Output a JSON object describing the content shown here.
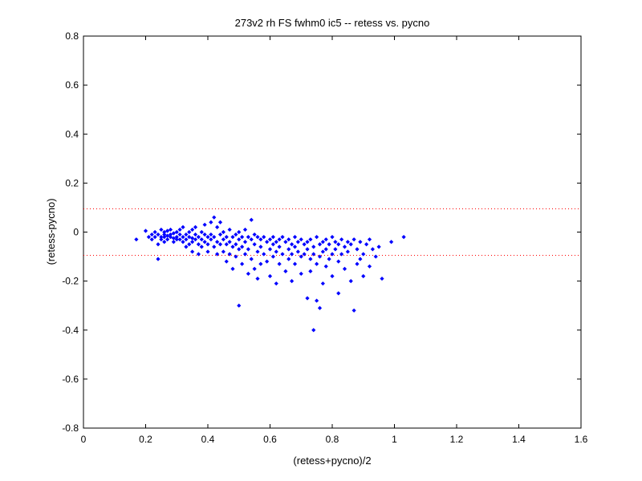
{
  "chart_data": {
    "type": "scatter",
    "title": "273v2 rh FS fwhm0 ic5 -- retess vs. pycno",
    "xlabel": "(retess+pycno)/2",
    "ylabel": "(retess-pycno)",
    "xlim": [
      0,
      1.6
    ],
    "ylim": [
      -0.8,
      0.8
    ],
    "x_ticks": [
      0,
      0.2,
      0.4,
      0.6,
      0.8,
      1,
      1.2,
      1.4,
      1.6
    ],
    "x_tick_labels": [
      "0",
      "0.2",
      "0.4",
      "0.6",
      "0.8",
      "1",
      "1.2",
      "1.4",
      "1.6"
    ],
    "y_ticks": [
      -0.8,
      -0.6,
      -0.4,
      -0.2,
      0,
      0.2,
      0.4,
      0.6,
      0.8
    ],
    "y_tick_labels": [
      "-0.8",
      "-0.6",
      "-0.4",
      "-0.2",
      "0",
      "0.2",
      "0.4",
      "0.6",
      "0.8"
    ],
    "grid": false,
    "marker_color": "#0000ff",
    "reference_line_color": "#ff0000",
    "reference_lines": [
      0.095,
      -0.095
    ],
    "points": [
      [
        0.17,
        -0.03
      ],
      [
        0.2,
        0.005
      ],
      [
        0.21,
        -0.02
      ],
      [
        0.22,
        -0.01
      ],
      [
        0.22,
        -0.03
      ],
      [
        0.23,
        0.0
      ],
      [
        0.23,
        -0.02
      ],
      [
        0.24,
        -0.01
      ],
      [
        0.24,
        -0.05
      ],
      [
        0.24,
        -0.11
      ],
      [
        0.25,
        0.01
      ],
      [
        0.25,
        -0.02
      ],
      [
        0.25,
        -0.03
      ],
      [
        0.26,
        0.0
      ],
      [
        0.26,
        -0.01
      ],
      [
        0.26,
        -0.02
      ],
      [
        0.26,
        -0.04
      ],
      [
        0.27,
        0.005
      ],
      [
        0.27,
        -0.015
      ],
      [
        0.27,
        -0.03
      ],
      [
        0.28,
        -0.01
      ],
      [
        0.28,
        -0.02
      ],
      [
        0.28,
        0.01
      ],
      [
        0.29,
        -0.005
      ],
      [
        0.29,
        -0.025
      ],
      [
        0.29,
        -0.04
      ],
      [
        0.3,
        0.0
      ],
      [
        0.3,
        -0.02
      ],
      [
        0.3,
        -0.03
      ],
      [
        0.31,
        -0.01
      ],
      [
        0.31,
        -0.03
      ],
      [
        0.31,
        0.01
      ],
      [
        0.32,
        -0.02
      ],
      [
        0.32,
        -0.04
      ],
      [
        0.32,
        0.02
      ],
      [
        0.33,
        -0.01
      ],
      [
        0.33,
        -0.03
      ],
      [
        0.33,
        -0.06
      ],
      [
        0.34,
        0.0
      ],
      [
        0.34,
        -0.02
      ],
      [
        0.34,
        -0.05
      ],
      [
        0.35,
        0.01
      ],
      [
        0.35,
        -0.025
      ],
      [
        0.35,
        -0.04
      ],
      [
        0.35,
        -0.08
      ],
      [
        0.36,
        -0.01
      ],
      [
        0.36,
        -0.03
      ],
      [
        0.36,
        0.02
      ],
      [
        0.37,
        -0.02
      ],
      [
        0.37,
        -0.05
      ],
      [
        0.37,
        -0.09
      ],
      [
        0.38,
        0.0
      ],
      [
        0.38,
        -0.03
      ],
      [
        0.38,
        -0.06
      ],
      [
        0.39,
        -0.01
      ],
      [
        0.39,
        -0.04
      ],
      [
        0.39,
        0.03
      ],
      [
        0.4,
        -0.02
      ],
      [
        0.4,
        -0.05
      ],
      [
        0.4,
        -0.08
      ],
      [
        0.41,
        0.04
      ],
      [
        0.41,
        -0.01
      ],
      [
        0.41,
        -0.03
      ],
      [
        0.42,
        0.06
      ],
      [
        0.42,
        -0.02
      ],
      [
        0.42,
        -0.06
      ],
      [
        0.43,
        0.02
      ],
      [
        0.43,
        -0.04
      ],
      [
        0.43,
        -0.09
      ],
      [
        0.44,
        0.04
      ],
      [
        0.44,
        -0.01
      ],
      [
        0.44,
        -0.05
      ],
      [
        0.45,
        0.0
      ],
      [
        0.45,
        -0.03
      ],
      [
        0.45,
        -0.08
      ],
      [
        0.46,
        -0.02
      ],
      [
        0.46,
        -0.05
      ],
      [
        0.46,
        -0.12
      ],
      [
        0.47,
        0.01
      ],
      [
        0.47,
        -0.04
      ],
      [
        0.47,
        -0.09
      ],
      [
        0.48,
        -0.02
      ],
      [
        0.48,
        -0.06
      ],
      [
        0.48,
        -0.15
      ],
      [
        0.49,
        -0.01
      ],
      [
        0.49,
        -0.05
      ],
      [
        0.49,
        -0.1
      ],
      [
        0.5,
        0.0
      ],
      [
        0.5,
        -0.03
      ],
      [
        0.5,
        -0.07
      ],
      [
        0.5,
        -0.3
      ],
      [
        0.51,
        -0.02
      ],
      [
        0.51,
        -0.06
      ],
      [
        0.51,
        -0.13
      ],
      [
        0.52,
        0.01
      ],
      [
        0.52,
        -0.04
      ],
      [
        0.52,
        -0.09
      ],
      [
        0.53,
        -0.02
      ],
      [
        0.53,
        -0.07
      ],
      [
        0.53,
        -0.17
      ],
      [
        0.54,
        0.05
      ],
      [
        0.54,
        -0.03
      ],
      [
        0.54,
        -0.11
      ],
      [
        0.55,
        -0.01
      ],
      [
        0.55,
        -0.05
      ],
      [
        0.55,
        -0.15
      ],
      [
        0.56,
        -0.02
      ],
      [
        0.56,
        -0.08
      ],
      [
        0.56,
        -0.19
      ],
      [
        0.57,
        -0.03
      ],
      [
        0.57,
        -0.06
      ],
      [
        0.57,
        -0.13
      ],
      [
        0.58,
        -0.02
      ],
      [
        0.58,
        -0.09
      ],
      [
        0.59,
        -0.04
      ],
      [
        0.59,
        -0.12
      ],
      [
        0.6,
        -0.03
      ],
      [
        0.6,
        -0.07
      ],
      [
        0.6,
        -0.18
      ],
      [
        0.61,
        -0.02
      ],
      [
        0.61,
        -0.05
      ],
      [
        0.61,
        -0.1
      ],
      [
        0.62,
        -0.04
      ],
      [
        0.62,
        -0.08
      ],
      [
        0.62,
        -0.21
      ],
      [
        0.63,
        -0.03
      ],
      [
        0.63,
        -0.06
      ],
      [
        0.63,
        -0.13
      ],
      [
        0.64,
        -0.02
      ],
      [
        0.64,
        -0.09
      ],
      [
        0.65,
        -0.04
      ],
      [
        0.65,
        -0.16
      ],
      [
        0.66,
        -0.03
      ],
      [
        0.66,
        -0.07
      ],
      [
        0.66,
        -0.11
      ],
      [
        0.67,
        -0.05
      ],
      [
        0.67,
        -0.09
      ],
      [
        0.67,
        -0.2
      ],
      [
        0.68,
        -0.02
      ],
      [
        0.68,
        -0.06
      ],
      [
        0.68,
        -0.13
      ],
      [
        0.69,
        -0.04
      ],
      [
        0.69,
        -0.08
      ],
      [
        0.7,
        -0.03
      ],
      [
        0.7,
        -0.1
      ],
      [
        0.7,
        -0.17
      ],
      [
        0.71,
        -0.05
      ],
      [
        0.71,
        -0.09
      ],
      [
        0.72,
        -0.04
      ],
      [
        0.72,
        -0.07
      ],
      [
        0.72,
        -0.27
      ],
      [
        0.73,
        -0.03
      ],
      [
        0.73,
        -0.11
      ],
      [
        0.73,
        -0.16
      ],
      [
        0.74,
        -0.06
      ],
      [
        0.74,
        -0.09
      ],
      [
        0.74,
        -0.4
      ],
      [
        0.75,
        -0.02
      ],
      [
        0.75,
        -0.13
      ],
      [
        0.75,
        -0.28
      ],
      [
        0.76,
        -0.05
      ],
      [
        0.76,
        -0.1
      ],
      [
        0.76,
        -0.31
      ],
      [
        0.77,
        -0.04
      ],
      [
        0.77,
        -0.08
      ],
      [
        0.77,
        -0.21
      ],
      [
        0.78,
        -0.03
      ],
      [
        0.78,
        -0.07
      ],
      [
        0.78,
        -0.14
      ],
      [
        0.79,
        -0.05
      ],
      [
        0.79,
        -0.11
      ],
      [
        0.8,
        -0.02
      ],
      [
        0.8,
        -0.09
      ],
      [
        0.8,
        -0.18
      ],
      [
        0.81,
        -0.04
      ],
      [
        0.81,
        -0.07
      ],
      [
        0.82,
        -0.05
      ],
      [
        0.82,
        -0.12
      ],
      [
        0.82,
        -0.25
      ],
      [
        0.83,
        -0.03
      ],
      [
        0.83,
        -0.09
      ],
      [
        0.84,
        -0.06
      ],
      [
        0.84,
        -0.15
      ],
      [
        0.85,
        -0.04
      ],
      [
        0.85,
        -0.08
      ],
      [
        0.86,
        -0.2
      ],
      [
        0.86,
        -0.05
      ],
      [
        0.87,
        -0.03
      ],
      [
        0.87,
        -0.32
      ],
      [
        0.88,
        -0.07
      ],
      [
        0.88,
        -0.13
      ],
      [
        0.89,
        -0.04
      ],
      [
        0.89,
        -0.11
      ],
      [
        0.9,
        -0.09
      ],
      [
        0.9,
        -0.18
      ],
      [
        0.91,
        -0.05
      ],
      [
        0.92,
        -0.03
      ],
      [
        0.92,
        -0.14
      ],
      [
        0.93,
        -0.07
      ],
      [
        0.94,
        -0.1
      ],
      [
        0.95,
        -0.06
      ],
      [
        0.96,
        -0.19
      ],
      [
        0.99,
        -0.04
      ],
      [
        1.03,
        -0.02
      ]
    ]
  }
}
